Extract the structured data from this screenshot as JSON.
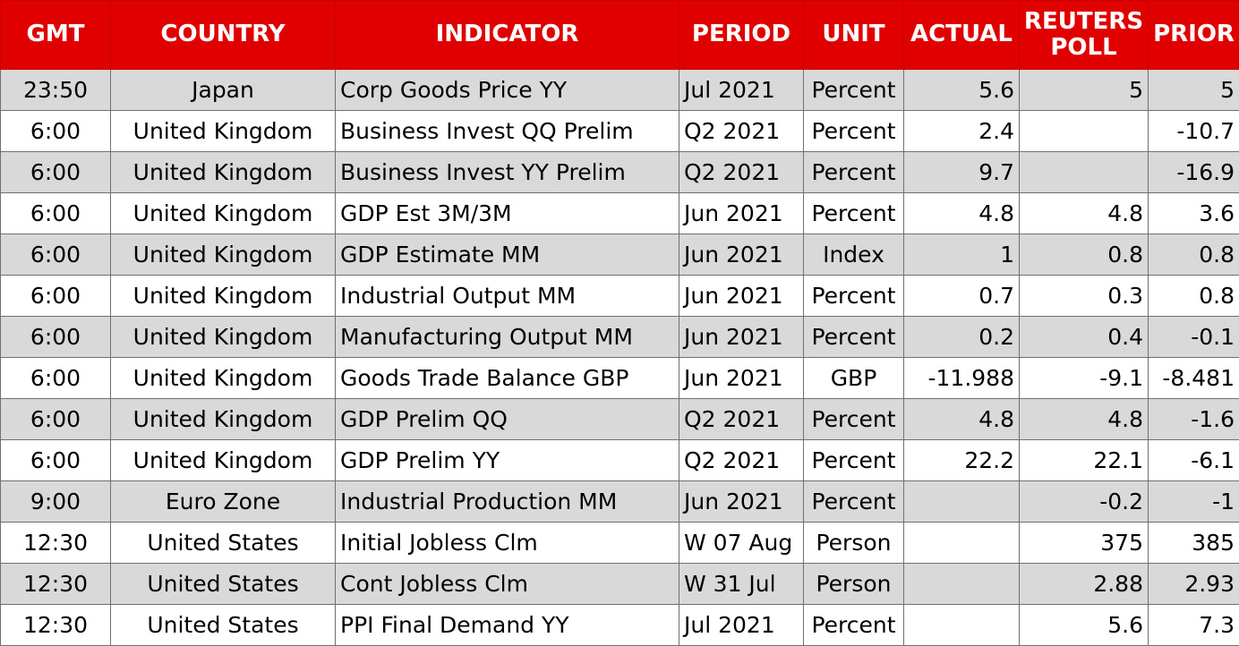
{
  "headers": {
    "gmt": "GMT",
    "country": "COUNTRY",
    "indicator": "INDICATOR",
    "period": "PERIOD",
    "unit": "UNIT",
    "actual": "ACTUAL",
    "poll_line1": "REUTERS",
    "poll_line2": "POLL",
    "prior": "PRIOR"
  },
  "colors": {
    "header_bg": "#e00000",
    "header_text": "#ffffff",
    "row_shade": "#d9d9d9",
    "row_plain": "#ffffff"
  },
  "rows": [
    {
      "gmt": "23:50",
      "country": "Japan",
      "indicator": "Corp Goods Price YY",
      "period": "Jul 2021",
      "unit": "Percent",
      "actual": "5.6",
      "poll": "5",
      "prior": "5"
    },
    {
      "gmt": "6:00",
      "country": "United Kingdom",
      "indicator": "Business Invest QQ Prelim",
      "period": "Q2 2021",
      "unit": "Percent",
      "actual": "2.4",
      "poll": "",
      "prior": "-10.7"
    },
    {
      "gmt": "6:00",
      "country": "United Kingdom",
      "indicator": "Business Invest YY Prelim",
      "period": "Q2 2021",
      "unit": "Percent",
      "actual": "9.7",
      "poll": "",
      "prior": "-16.9"
    },
    {
      "gmt": "6:00",
      "country": "United Kingdom",
      "indicator": "GDP Est 3M/3M",
      "period": "Jun 2021",
      "unit": "Percent",
      "actual": "4.8",
      "poll": "4.8",
      "prior": "3.6"
    },
    {
      "gmt": "6:00",
      "country": "United Kingdom",
      "indicator": "GDP Estimate MM",
      "period": "Jun 2021",
      "unit": "Index",
      "actual": "1",
      "poll": "0.8",
      "prior": "0.8"
    },
    {
      "gmt": "6:00",
      "country": "United Kingdom",
      "indicator": "Industrial Output MM",
      "period": "Jun 2021",
      "unit": "Percent",
      "actual": "0.7",
      "poll": "0.3",
      "prior": "0.8"
    },
    {
      "gmt": "6:00",
      "country": "United Kingdom",
      "indicator": "Manufacturing Output MM",
      "period": "Jun 2021",
      "unit": "Percent",
      "actual": "0.2",
      "poll": "0.4",
      "prior": "-0.1"
    },
    {
      "gmt": "6:00",
      "country": "United Kingdom",
      "indicator": "Goods Trade Balance GBP",
      "period": "Jun 2021",
      "unit": "GBP",
      "actual": "-11.988",
      "poll": "-9.1",
      "prior": "-8.481"
    },
    {
      "gmt": "6:00",
      "country": "United Kingdom",
      "indicator": "GDP Prelim QQ",
      "period": "Q2 2021",
      "unit": "Percent",
      "actual": "4.8",
      "poll": "4.8",
      "prior": "-1.6"
    },
    {
      "gmt": "6:00",
      "country": "United Kingdom",
      "indicator": "GDP Prelim YY",
      "period": "Q2 2021",
      "unit": "Percent",
      "actual": "22.2",
      "poll": "22.1",
      "prior": "-6.1"
    },
    {
      "gmt": "9:00",
      "country": "Euro Zone",
      "indicator": "Industrial Production MM",
      "period": "Jun 2021",
      "unit": "Percent",
      "actual": "",
      "poll": "-0.2",
      "prior": "-1"
    },
    {
      "gmt": "12:30",
      "country": "United States",
      "indicator": "Initial Jobless Clm",
      "period": "W 07 Aug",
      "unit": "Person",
      "actual": "",
      "poll": "375",
      "prior": "385"
    },
    {
      "gmt": "12:30",
      "country": "United States",
      "indicator": "Cont Jobless Clm",
      "period": "W 31 Jul",
      "unit": "Person",
      "actual": "",
      "poll": "2.88",
      "prior": "2.93"
    },
    {
      "gmt": "12:30",
      "country": "United States",
      "indicator": "PPI Final Demand YY",
      "period": "Jul 2021",
      "unit": "Percent",
      "actual": "",
      "poll": "5.6",
      "prior": "7.3"
    }
  ]
}
